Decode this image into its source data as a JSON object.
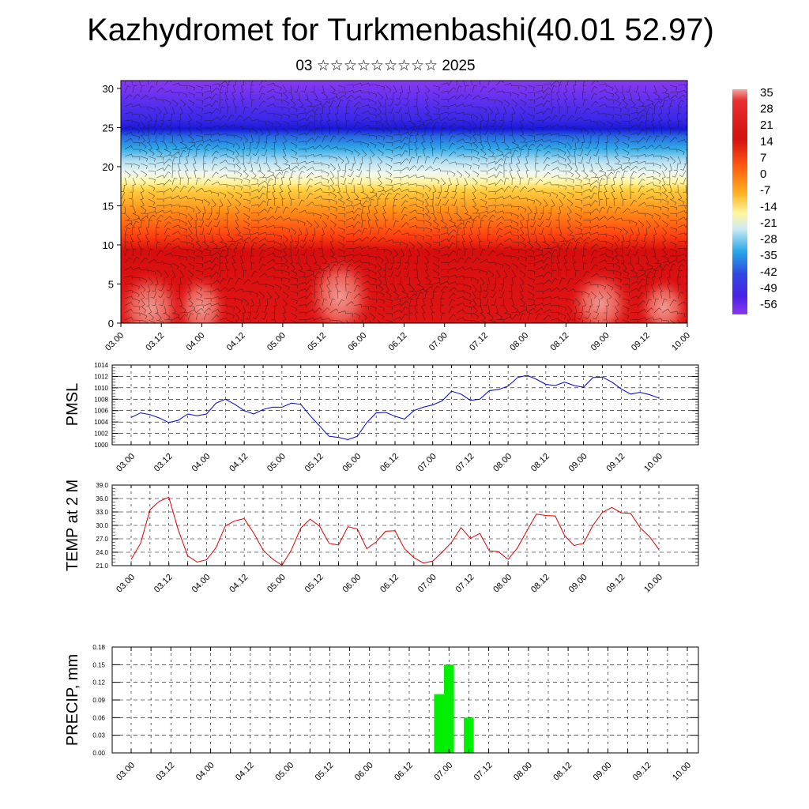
{
  "header": {
    "title": "Kazhydromet for Turkmenbashi(40.01 52.97)",
    "subtitle": "03 ☆☆☆☆☆☆☆☆☆ 2025"
  },
  "chart_data": [
    {
      "type": "heatmap",
      "title": "",
      "xlabel": "",
      "ylabel": "",
      "x_tick_labels": [
        "03.00",
        "03.12",
        "04.00",
        "04.12",
        "05.00",
        "05.12",
        "06.00",
        "06.12",
        "07.00",
        "07.12",
        "08.00",
        "08.12",
        "09.00",
        "09.12",
        "10.00"
      ],
      "ylim": [
        0,
        31
      ],
      "y_ticks": [
        0,
        5,
        10,
        15,
        20,
        25,
        30
      ],
      "colorbar_labels": [
        "35",
        "28",
        "21",
        "14",
        "7",
        "0",
        "-7",
        "-14",
        "-21",
        "-28",
        "-35",
        "-42",
        "-49",
        "-56"
      ],
      "color_stops": [
        {
          "t": 0.0,
          "color": "#f2a5a5"
        },
        {
          "t": 0.05,
          "color": "#e83030"
        },
        {
          "t": 0.22,
          "color": "#d40f0f"
        },
        {
          "t": 0.34,
          "color": "#ff5a10"
        },
        {
          "t": 0.46,
          "color": "#ffb020"
        },
        {
          "t": 0.55,
          "color": "#fff6a0"
        },
        {
          "t": 0.62,
          "color": "#cfeaf4"
        },
        {
          "t": 0.72,
          "color": "#26a9e8"
        },
        {
          "t": 0.82,
          "color": "#3048e0"
        },
        {
          "t": 0.92,
          "color": "#4a20e8"
        },
        {
          "t": 1.0,
          "color": "#8a38f0"
        }
      ],
      "overlay": "wind barbs"
    },
    {
      "type": "line",
      "ylabel": "PMSL",
      "ylim": [
        1000,
        1014
      ],
      "y_ticks": [
        1000,
        1002,
        1004,
        1006,
        1008,
        1010,
        1012,
        1014
      ],
      "x_tick_labels": [
        "03.00",
        "03.12",
        "04.00",
        "04.12",
        "05.00",
        "05.12",
        "06.00",
        "06.12",
        "07.00",
        "07.12",
        "08.00",
        "08.12",
        "09.00",
        "09.12",
        "10.00"
      ],
      "line_color": "#0000cc",
      "series": [
        {
          "values": [
            1004.8,
            1005.6,
            1005.3,
            1004.7,
            1003.9,
            1004.3,
            1005.4,
            1005.1,
            1005.4,
            1007.3,
            1008.0,
            1007.1,
            1006.0,
            1005.4,
            1006.2,
            1006.6,
            1006.6,
            1007.3,
            1007.1,
            1005.1,
            1003.3,
            1001.5,
            1001.3,
            1000.9,
            1001.5,
            1003.9,
            1005.6,
            1005.7,
            1005.0,
            1004.5,
            1006.0,
            1006.6,
            1007.0,
            1007.7,
            1009.4,
            1008.9,
            1007.8,
            1008.0,
            1009.5,
            1009.7,
            1010.3,
            1011.8,
            1012.2,
            1011.5,
            1010.6,
            1010.4,
            1011.0,
            1010.4,
            1010.1,
            1011.8,
            1011.9,
            1011.0,
            1009.8,
            1008.9,
            1009.2,
            1008.8,
            1008.2
          ]
        }
      ]
    },
    {
      "type": "line",
      "ylabel": "TEMP at 2 M",
      "ylim": [
        21.0,
        39.0
      ],
      "y_ticks": [
        21.0,
        24.0,
        27.0,
        30.0,
        33.0,
        36.0,
        39.0
      ],
      "x_tick_labels": [
        "03.00",
        "03.12",
        "04.00",
        "04.12",
        "05.00",
        "05.12",
        "06.00",
        "06.12",
        "07.00",
        "07.12",
        "08.00",
        "08.12",
        "09.00",
        "09.12",
        "10.00"
      ],
      "line_color": "#dd0000",
      "series": [
        {
          "values": [
            22.4,
            26.0,
            33.5,
            35.4,
            36.3,
            29.0,
            23.2,
            21.8,
            22.3,
            25.0,
            29.9,
            31.0,
            31.5,
            28.3,
            24.5,
            22.5,
            21.1,
            24.5,
            29.4,
            31.4,
            29.8,
            26.0,
            25.6,
            29.7,
            29.2,
            24.8,
            26.3,
            28.7,
            28.8,
            24.8,
            22.8,
            21.6,
            22.0,
            24.0,
            26.2,
            29.5,
            27.1,
            28.2,
            24.3,
            24.1,
            22.4,
            25.0,
            28.8,
            32.5,
            32.2,
            32.1,
            27.7,
            25.5,
            26.0,
            30.0,
            32.9,
            34.0,
            32.8,
            32.7,
            29.5,
            27.5,
            24.6
          ]
        }
      ]
    },
    {
      "type": "bar",
      "ylabel": "PRECIP, mm",
      "ylim": [
        0,
        0.18
      ],
      "y_ticks": [
        "0.00",
        "0.03",
        "0.06",
        "0.09",
        "0.12",
        "0.15",
        "0.18"
      ],
      "x_tick_labels": [
        "03.00",
        "03.12",
        "04.00",
        "04.12",
        "05.00",
        "05.12",
        "06.00",
        "06.12",
        "07.00",
        "07.12",
        "08.00",
        "08.12",
        "09.00",
        "09.12",
        "10.00"
      ],
      "bar_color": "#00ee00",
      "bars": [
        {
          "x_hours": 93,
          "value": 0.1
        },
        {
          "x_hours": 96,
          "value": 0.15
        },
        {
          "x_hours": 102,
          "value": 0.06
        }
      ]
    }
  ]
}
